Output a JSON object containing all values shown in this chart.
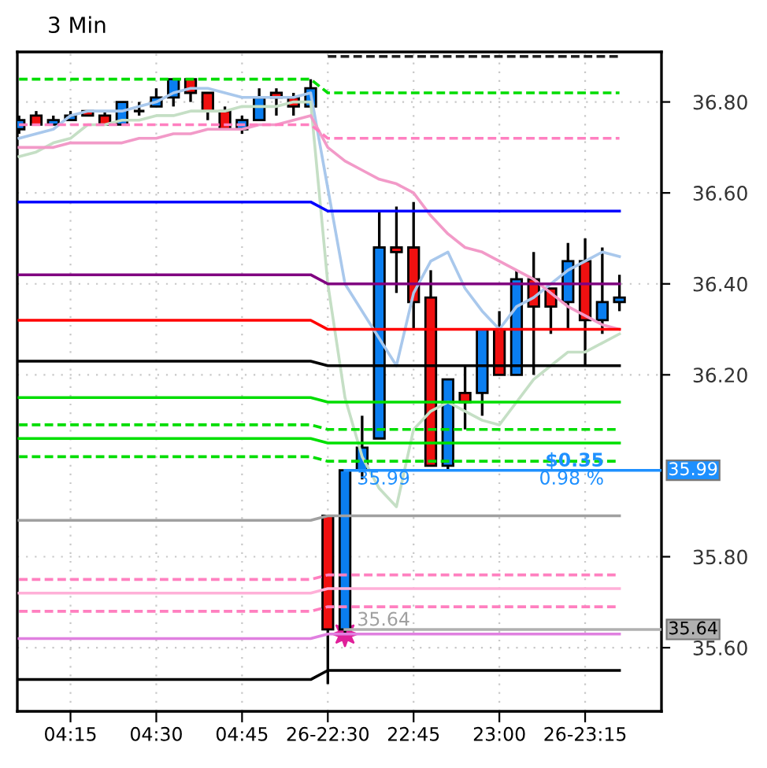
{
  "chart_data": {
    "type": "candlestick",
    "title": "3 Min",
    "categories": [
      null,
      null,
      null,
      "04:15",
      null,
      null,
      null,
      null,
      "04:30",
      null,
      null,
      null,
      null,
      "04:45",
      null,
      null,
      null,
      null,
      "26-22:30",
      null,
      null,
      null,
      null,
      "22:45",
      null,
      null,
      null,
      null,
      "23:00",
      null,
      null,
      null,
      null,
      "26-23:15",
      null,
      null
    ],
    "ohlc": [
      [
        36.74,
        36.77,
        36.73,
        36.76
      ],
      [
        36.77,
        36.78,
        36.75,
        36.75
      ],
      [
        36.75,
        36.77,
        36.75,
        36.76
      ],
      [
        36.76,
        36.78,
        36.76,
        36.77
      ],
      [
        36.78,
        36.78,
        36.77,
        36.77
      ],
      [
        36.77,
        36.78,
        36.75,
        36.75
      ],
      [
        36.75,
        36.8,
        36.75,
        36.8
      ],
      [
        36.78,
        36.8,
        36.77,
        36.78
      ],
      [
        36.79,
        36.83,
        36.79,
        36.81
      ],
      [
        36.81,
        36.85,
        36.79,
        36.85
      ],
      [
        36.85,
        36.85,
        36.8,
        36.82
      ],
      [
        36.82,
        36.82,
        36.76,
        36.78
      ],
      [
        36.78,
        36.79,
        36.74,
        36.74
      ],
      [
        36.74,
        36.77,
        36.73,
        36.76
      ],
      [
        36.76,
        36.83,
        36.76,
        36.81
      ],
      [
        36.82,
        36.83,
        36.77,
        36.81
      ],
      [
        36.81,
        36.82,
        36.77,
        36.79
      ],
      [
        36.79,
        36.85,
        36.79,
        36.83
      ],
      [
        35.89,
        35.89,
        35.52,
        35.64
      ],
      [
        35.64,
        35.99,
        35.63,
        35.99
      ],
      [
        35.99,
        36.11,
        35.97,
        36.04
      ],
      [
        36.06,
        36.56,
        36.06,
        36.48
      ],
      [
        36.48,
        36.57,
        36.38,
        36.47
      ],
      [
        36.48,
        36.58,
        36.3,
        36.36
      ],
      [
        36.37,
        36.43,
        36.0,
        36.0
      ],
      [
        36.0,
        36.19,
        35.99,
        36.19
      ],
      [
        36.16,
        36.22,
        36.08,
        36.14
      ],
      [
        36.16,
        36.3,
        36.11,
        36.3
      ],
      [
        36.3,
        36.34,
        36.2,
        36.2
      ],
      [
        36.2,
        36.43,
        36.2,
        36.41
      ],
      [
        36.41,
        36.47,
        36.2,
        36.35
      ],
      [
        36.39,
        36.39,
        36.29,
        36.35
      ],
      [
        36.36,
        36.49,
        36.3,
        36.45
      ],
      [
        36.45,
        36.5,
        36.22,
        36.32
      ],
      [
        36.32,
        36.48,
        36.29,
        36.36
      ],
      [
        36.36,
        36.42,
        36.34,
        36.37
      ]
    ],
    "series": [
      {
        "type": "line",
        "color": "#a9c8ec",
        "values": [
          36.72,
          36.73,
          36.74,
          36.77,
          36.78,
          36.78,
          36.78,
          36.79,
          36.8,
          36.82,
          36.83,
          36.83,
          36.82,
          36.81,
          36.81,
          36.81,
          36.81,
          36.82,
          36.61,
          36.4,
          36.34,
          36.28,
          36.22,
          36.38,
          36.45,
          36.47,
          36.39,
          36.34,
          36.3,
          36.35,
          36.37,
          36.4,
          36.43,
          36.45,
          36.47,
          36.46
        ]
      },
      {
        "type": "line",
        "color": "#c5dfc5",
        "values": [
          36.68,
          36.69,
          36.71,
          36.72,
          36.75,
          36.75,
          36.76,
          36.76,
          36.77,
          36.77,
          36.78,
          36.78,
          36.78,
          36.79,
          36.79,
          36.79,
          36.8,
          36.8,
          36.4,
          36.15,
          36.02,
          35.95,
          35.91,
          36.08,
          36.12,
          36.14,
          36.12,
          36.1,
          36.09,
          36.14,
          36.19,
          36.22,
          36.25,
          36.25,
          36.27,
          36.29
        ]
      },
      {
        "type": "line",
        "color": "#f29ac8",
        "values": [
          36.7,
          36.7,
          36.7,
          36.71,
          36.71,
          36.71,
          36.71,
          36.72,
          36.72,
          36.73,
          36.73,
          36.74,
          36.74,
          36.74,
          36.75,
          36.75,
          36.76,
          36.77,
          36.7,
          36.67,
          36.65,
          36.63,
          36.62,
          36.6,
          36.55,
          36.51,
          36.48,
          36.47,
          36.45,
          36.43,
          36.41,
          36.38,
          36.35,
          36.33,
          36.31,
          36.3
        ]
      },
      {
        "type": "line",
        "color": "#202020",
        "line_style": "dashed",
        "values": [
          null,
          null,
          null,
          null,
          null,
          null,
          null,
          null,
          null,
          null,
          null,
          null,
          null,
          null,
          null,
          null,
          null,
          null,
          36.9,
          36.9,
          36.9,
          36.9,
          36.9,
          36.9,
          36.9,
          36.9,
          36.9,
          36.9,
          36.9,
          36.9,
          36.9,
          36.9,
          36.9,
          36.9,
          36.9,
          36.9
        ]
      },
      {
        "type": "line",
        "color": "#00dd00",
        "line_style": "dashed",
        "values": [
          36.85,
          36.85,
          36.85,
          36.85,
          36.85,
          36.85,
          36.85,
          36.85,
          36.85,
          36.85,
          36.85,
          36.85,
          36.85,
          36.85,
          36.85,
          36.85,
          36.85,
          36.85,
          36.82,
          36.82,
          36.82,
          36.82,
          36.82,
          36.82,
          36.82,
          36.82,
          36.82,
          36.82,
          36.82,
          36.82,
          36.82,
          36.82,
          36.82,
          36.82,
          36.82,
          36.82
        ]
      },
      {
        "type": "line",
        "color": "#ff80c0",
        "line_style": "dashed",
        "values": [
          36.75,
          36.75,
          36.75,
          36.75,
          36.75,
          36.75,
          36.75,
          36.75,
          36.75,
          36.75,
          36.75,
          36.75,
          36.75,
          36.75,
          36.75,
          36.75,
          36.75,
          36.75,
          36.72,
          36.72,
          36.72,
          36.72,
          36.72,
          36.72,
          36.72,
          36.72,
          36.72,
          36.72,
          36.72,
          36.72,
          36.72,
          36.72,
          36.72,
          36.72,
          36.72,
          36.72
        ]
      },
      {
        "type": "line",
        "color": "#0000ff",
        "values": [
          36.58,
          36.58,
          36.58,
          36.58,
          36.58,
          36.58,
          36.58,
          36.58,
          36.58,
          36.58,
          36.58,
          36.58,
          36.58,
          36.58,
          36.58,
          36.58,
          36.58,
          36.58,
          36.56,
          36.56,
          36.56,
          36.56,
          36.56,
          36.56,
          36.56,
          36.56,
          36.56,
          36.56,
          36.56,
          36.56,
          36.56,
          36.56,
          36.56,
          36.56,
          36.56,
          36.56
        ]
      },
      {
        "type": "line",
        "color": "#800080",
        "values": [
          36.42,
          36.42,
          36.42,
          36.42,
          36.42,
          36.42,
          36.42,
          36.42,
          36.42,
          36.42,
          36.42,
          36.42,
          36.42,
          36.42,
          36.42,
          36.42,
          36.42,
          36.42,
          36.4,
          36.4,
          36.4,
          36.4,
          36.4,
          36.4,
          36.4,
          36.4,
          36.4,
          36.4,
          36.4,
          36.4,
          36.4,
          36.4,
          36.4,
          36.4,
          36.4,
          36.4
        ]
      },
      {
        "type": "line",
        "color": "#ff0000",
        "values": [
          36.32,
          36.32,
          36.32,
          36.32,
          36.32,
          36.32,
          36.32,
          36.32,
          36.32,
          36.32,
          36.32,
          36.32,
          36.32,
          36.32,
          36.32,
          36.32,
          36.32,
          36.32,
          36.3,
          36.3,
          36.3,
          36.3,
          36.3,
          36.3,
          36.3,
          36.3,
          36.3,
          36.3,
          36.3,
          36.3,
          36.3,
          36.3,
          36.3,
          36.3,
          36.3,
          36.3
        ]
      },
      {
        "type": "line",
        "color": "#000000",
        "values": [
          36.23,
          36.23,
          36.23,
          36.23,
          36.23,
          36.23,
          36.23,
          36.23,
          36.23,
          36.23,
          36.23,
          36.23,
          36.23,
          36.23,
          36.23,
          36.23,
          36.23,
          36.23,
          36.22,
          36.22,
          36.22,
          36.22,
          36.22,
          36.22,
          36.22,
          36.22,
          36.22,
          36.22,
          36.22,
          36.22,
          36.22,
          36.22,
          36.22,
          36.22,
          36.22,
          36.22
        ]
      },
      {
        "type": "line",
        "color": "#00dd00",
        "values": [
          36.15,
          36.15,
          36.15,
          36.15,
          36.15,
          36.15,
          36.15,
          36.15,
          36.15,
          36.15,
          36.15,
          36.15,
          36.15,
          36.15,
          36.15,
          36.15,
          36.15,
          36.15,
          36.14,
          36.14,
          36.14,
          36.14,
          36.14,
          36.14,
          36.14,
          36.14,
          36.14,
          36.14,
          36.14,
          36.14,
          36.14,
          36.14,
          36.14,
          36.14,
          36.14,
          36.14
        ]
      },
      {
        "type": "line",
        "color": "#00dd00",
        "line_style": "dashed",
        "values": [
          36.09,
          36.09,
          36.09,
          36.09,
          36.09,
          36.09,
          36.09,
          36.09,
          36.09,
          36.09,
          36.09,
          36.09,
          36.09,
          36.09,
          36.09,
          36.09,
          36.09,
          36.09,
          36.08,
          36.08,
          36.08,
          36.08,
          36.08,
          36.08,
          36.08,
          36.08,
          36.08,
          36.08,
          36.08,
          36.08,
          36.08,
          36.08,
          36.08,
          36.08,
          36.08,
          36.08
        ]
      },
      {
        "type": "line",
        "color": "#00e000",
        "values": [
          36.06,
          36.06,
          36.06,
          36.06,
          36.06,
          36.06,
          36.06,
          36.06,
          36.06,
          36.06,
          36.06,
          36.06,
          36.06,
          36.06,
          36.06,
          36.06,
          36.06,
          36.06,
          36.05,
          36.05,
          36.05,
          36.05,
          36.05,
          36.05,
          36.05,
          36.05,
          36.05,
          36.05,
          36.05,
          36.05,
          36.05,
          36.05,
          36.05,
          36.05,
          36.05,
          36.05
        ]
      },
      {
        "type": "line",
        "color": "#00dd00",
        "line_style": "dashed",
        "values": [
          36.02,
          36.02,
          36.02,
          36.02,
          36.02,
          36.02,
          36.02,
          36.02,
          36.02,
          36.02,
          36.02,
          36.02,
          36.02,
          36.02,
          36.02,
          36.02,
          36.02,
          36.02,
          36.01,
          36.01,
          36.01,
          36.01,
          36.01,
          36.01,
          36.01,
          36.01,
          36.01,
          36.01,
          36.01,
          36.01,
          36.01,
          36.01,
          36.01,
          36.01,
          36.01,
          36.01
        ]
      },
      {
        "type": "line",
        "color": "#a0a0a0",
        "values": [
          35.88,
          35.88,
          35.88,
          35.88,
          35.88,
          35.88,
          35.88,
          35.88,
          35.88,
          35.88,
          35.88,
          35.88,
          35.88,
          35.88,
          35.88,
          35.88,
          35.88,
          35.88,
          35.89,
          35.89,
          35.89,
          35.89,
          35.89,
          35.89,
          35.89,
          35.89,
          35.89,
          35.89,
          35.89,
          35.89,
          35.89,
          35.89,
          35.89,
          35.89,
          35.89,
          35.89
        ]
      },
      {
        "type": "line",
        "color": "#ff80c0",
        "line_style": "dashed",
        "values": [
          35.75,
          35.75,
          35.75,
          35.75,
          35.75,
          35.75,
          35.75,
          35.75,
          35.75,
          35.75,
          35.75,
          35.75,
          35.75,
          35.75,
          35.75,
          35.75,
          35.75,
          35.75,
          35.76,
          35.76,
          35.76,
          35.76,
          35.76,
          35.76,
          35.76,
          35.76,
          35.76,
          35.76,
          35.76,
          35.76,
          35.76,
          35.76,
          35.76,
          35.76,
          35.76,
          35.76
        ]
      },
      {
        "type": "line",
        "color": "#ffb0d8",
        "values": [
          35.72,
          35.72,
          35.72,
          35.72,
          35.72,
          35.72,
          35.72,
          35.72,
          35.72,
          35.72,
          35.72,
          35.72,
          35.72,
          35.72,
          35.72,
          35.72,
          35.72,
          35.72,
          35.73,
          35.73,
          35.73,
          35.73,
          35.73,
          35.73,
          35.73,
          35.73,
          35.73,
          35.73,
          35.73,
          35.73,
          35.73,
          35.73,
          35.73,
          35.73,
          35.73,
          35.73
        ]
      },
      {
        "type": "line",
        "color": "#ff80c0",
        "line_style": "dashed",
        "values": [
          35.68,
          35.68,
          35.68,
          35.68,
          35.68,
          35.68,
          35.68,
          35.68,
          35.68,
          35.68,
          35.68,
          35.68,
          35.68,
          35.68,
          35.68,
          35.68,
          35.68,
          35.68,
          35.69,
          35.69,
          35.69,
          35.69,
          35.69,
          35.69,
          35.69,
          35.69,
          35.69,
          35.69,
          35.69,
          35.69,
          35.69,
          35.69,
          35.69,
          35.69,
          35.69,
          35.69
        ]
      },
      {
        "type": "line",
        "color": "#e080e0",
        "values": [
          35.62,
          35.62,
          35.62,
          35.62,
          35.62,
          35.62,
          35.62,
          35.62,
          35.62,
          35.62,
          35.62,
          35.62,
          35.62,
          35.62,
          35.62,
          35.62,
          35.62,
          35.62,
          35.63,
          35.63,
          35.63,
          35.63,
          35.63,
          35.63,
          35.63,
          35.63,
          35.63,
          35.63,
          35.63,
          35.63,
          35.63,
          35.63,
          35.63,
          35.63,
          35.63,
          35.63
        ]
      },
      {
        "type": "line",
        "color": "#000000",
        "values": [
          35.53,
          35.53,
          35.53,
          35.53,
          35.53,
          35.53,
          35.53,
          35.53,
          35.53,
          35.53,
          35.53,
          35.53,
          35.53,
          35.53,
          35.53,
          35.53,
          35.53,
          35.53,
          35.55,
          35.55,
          35.55,
          35.55,
          35.55,
          35.55,
          35.55,
          35.55,
          35.55,
          35.55,
          35.55,
          35.55,
          35.55,
          35.55,
          35.55,
          35.55,
          35.55,
          35.55
        ]
      }
    ],
    "ylim": [
      35.46,
      36.91
    ],
    "yticks": [
      {
        "value": 35.6,
        "label": "35.60"
      },
      {
        "value": 35.8,
        "label": "35.80"
      },
      {
        "value": 36.2,
        "label": "36.20"
      },
      {
        "value": 36.4,
        "label": "36.40"
      },
      {
        "value": 36.6,
        "label": "36.60"
      },
      {
        "value": 36.8,
        "label": "36.80"
      }
    ],
    "ref_lines": [
      {
        "axis": "y",
        "value": 35.99,
        "label": "35.99",
        "color": "#1e90ff"
      },
      {
        "axis": "y",
        "value": 35.64,
        "label": "35.64",
        "color": "#b0b0b0"
      }
    ],
    "annotations": [
      {
        "text": "35.99",
        "y": 35.99
      },
      {
        "text": "$0.35",
        "y": 35.99
      },
      {
        "text": "0.98 %",
        "y": 35.99
      },
      {
        "text": "35.64",
        "y": 35.64
      }
    ],
    "grid": true,
    "legend": false
  }
}
